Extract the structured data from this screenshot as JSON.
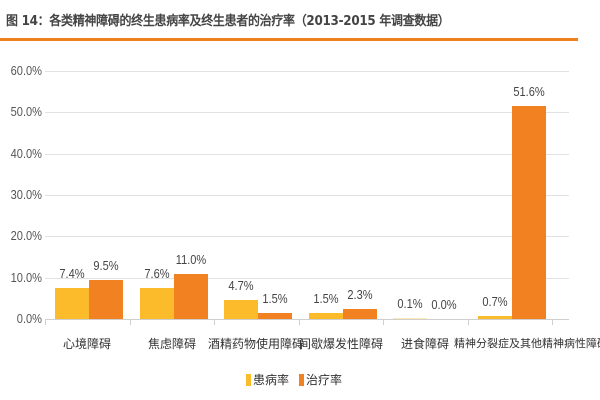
{
  "header": {
    "title": "图 14：各类精神障碍的终生患病率及终生患者的治疗率（2013-2015 年调查数据）",
    "rule_color": "#f07f1e"
  },
  "colors": {
    "prevalence": "#fbbb2b",
    "treatment": "#f28122"
  },
  "yaxis": {
    "ticks": [
      "60.0%",
      "50.0%",
      "40.0%",
      "30.0%",
      "20.0%",
      "10.0%",
      "0.0%"
    ]
  },
  "legend": {
    "items": [
      {
        "label": "患病率",
        "color": "#fbbb2b"
      },
      {
        "label": "治疗率",
        "color": "#f28122"
      }
    ]
  },
  "categories_display": [
    {
      "label": "心境障碍",
      "prev": "7.4%",
      "treat": "9.5%"
    },
    {
      "label": "焦虑障碍",
      "prev": "7.6%",
      "treat": "11.0%"
    },
    {
      "label": "酒精药物使用障碍",
      "prev": "4.7%",
      "treat": "1.5%"
    },
    {
      "label": "间歇爆发性障碍",
      "prev": "1.5%",
      "treat": "2.3%"
    },
    {
      "label": "进食障碍",
      "prev": "0.1%",
      "treat": "0.0%"
    },
    {
      "label": "精神分裂症及其他精神病性障碍",
      "prev": "0.7%",
      "treat": "51.6%"
    }
  ],
  "chart_data": {
    "type": "bar",
    "title": "图 14：各类精神障碍的终生患病率及终生患者的治疗率（2013-2015 年调查数据）",
    "xlabel": "",
    "ylabel": "",
    "categories": [
      "心境障碍",
      "焦虑障碍",
      "酒精药物使用障碍",
      "间歇爆发性障碍",
      "进食障碍",
      "精神分裂症及其他精神病性障碍"
    ],
    "series": [
      {
        "name": "患病率",
        "values": [
          7.4,
          7.6,
          4.7,
          1.5,
          0.1,
          0.7
        ],
        "color": "#fbbb2b"
      },
      {
        "name": "治疗率",
        "values": [
          9.5,
          11.0,
          1.5,
          2.3,
          0.0,
          51.6
        ],
        "color": "#f28122"
      }
    ],
    "ylim": [
      0,
      60
    ],
    "yticks": [
      0,
      10,
      20,
      30,
      40,
      50,
      60
    ],
    "ytick_format": "0.0%",
    "grid": true,
    "legend_position": "bottom",
    "data_labels": true
  }
}
